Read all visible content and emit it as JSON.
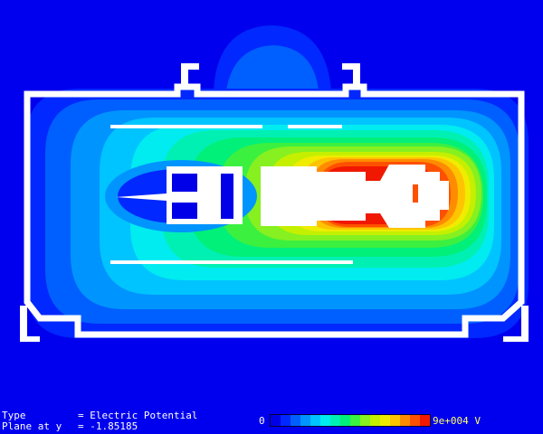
{
  "footer": {
    "type_label": "Type",
    "type_value": "= Electric Potential",
    "plane_label": "Plane at y",
    "plane_value": "= -1.85185"
  },
  "legend": {
    "min_label": "0",
    "max_label": "9e+004 V",
    "colors": [
      "#0000e8",
      "#0028ff",
      "#0060ff",
      "#0094ff",
      "#00c4ff",
      "#00ecf0",
      "#00f0b4",
      "#00f07a",
      "#3cf040",
      "#86f020",
      "#c4f000",
      "#f0ec00",
      "#ffc400",
      "#ff8c00",
      "#ff5000",
      "#f01800"
    ]
  },
  "palette": {
    "background": "#0000ee",
    "geometry": "#ffffff",
    "colormap": [
      "#0000e8",
      "#0028ff",
      "#0060ff",
      "#0094ff",
      "#00c4ff",
      "#00ecf0",
      "#00f0b4",
      "#00f07a",
      "#3cf040",
      "#86f020",
      "#c4f000",
      "#f0ec00",
      "#ffc400",
      "#ff8c00",
      "#ff5000",
      "#f01800"
    ]
  }
}
